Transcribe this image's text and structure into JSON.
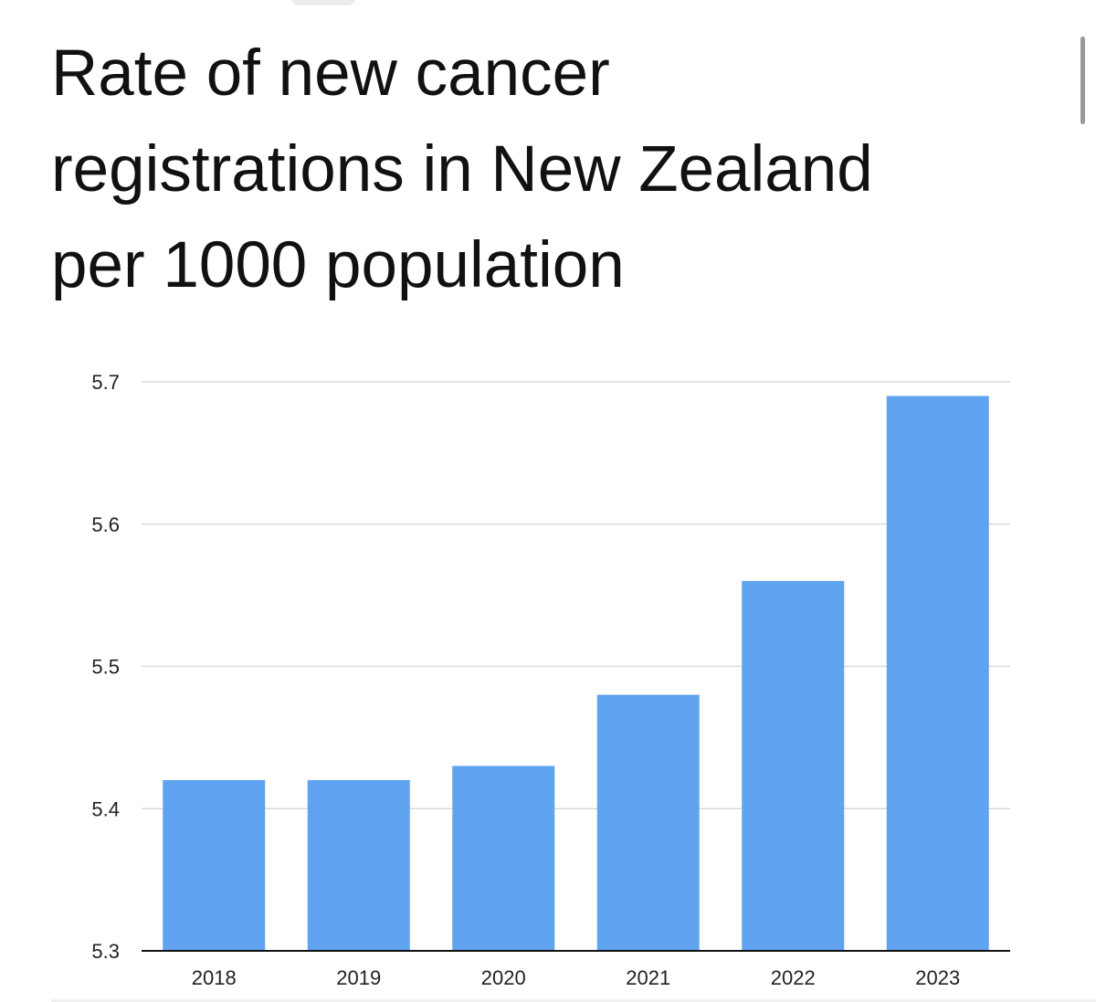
{
  "title_lines": [
    "Rate of new cancer",
    "registrations in New Zealand",
    "per 1000 population"
  ],
  "chart_data": {
    "type": "bar",
    "categories": [
      "2018",
      "2019",
      "2020",
      "2021",
      "2022",
      "2023"
    ],
    "values": [
      5.42,
      5.42,
      5.43,
      5.48,
      5.56,
      5.69
    ],
    "ylim": [
      5.3,
      5.7
    ],
    "yticks": [
      "5.3",
      "5.4",
      "5.5",
      "5.6",
      "5.7"
    ],
    "grid": true,
    "bar_color": "#60a3f0",
    "grid_color": "#d9d9d9",
    "axis_color": "#111111"
  }
}
